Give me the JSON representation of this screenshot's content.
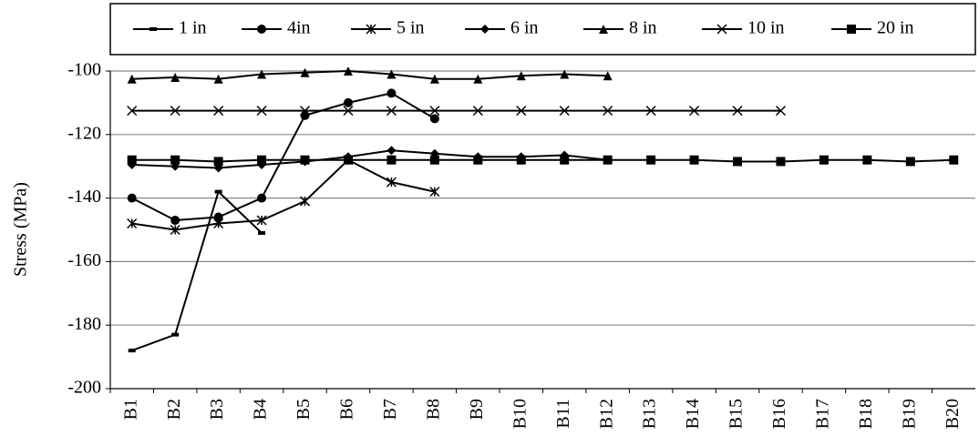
{
  "chart_data": {
    "type": "line",
    "y_label": "Stress (MPa)",
    "categories": [
      "B1",
      "B2",
      "B3",
      "B4",
      "B5",
      "B6",
      "B7",
      "B8",
      "B9",
      "B10",
      "B11",
      "B12",
      "B13",
      "B14",
      "B15",
      "B16",
      "B17",
      "B18",
      "B19",
      "B20"
    ],
    "ylim": [
      -200,
      -100
    ],
    "yticks": [
      -200,
      -180,
      -160,
      -140,
      -120,
      -100
    ],
    "grid": true,
    "legend": "top",
    "series": [
      {
        "name": "1 in",
        "color": "#000000",
        "marker": "dash",
        "values": [
          -188,
          -183,
          -138,
          -151,
          null,
          null,
          null,
          null,
          null,
          null,
          null,
          null,
          null,
          null,
          null,
          null,
          null,
          null,
          null,
          null
        ]
      },
      {
        "name": "4in",
        "color": "#000000",
        "marker": "circle",
        "values": [
          -140,
          -147,
          -146,
          -140,
          -114,
          -110,
          -107,
          -115,
          null,
          null,
          null,
          null,
          null,
          null,
          null,
          null,
          null,
          null,
          null,
          null
        ]
      },
      {
        "name": "5 in",
        "color": "#000000",
        "marker": "star",
        "values": [
          -148,
          -150,
          -148,
          -147,
          -141,
          -128,
          -135,
          -138,
          null,
          null,
          null,
          null,
          null,
          null,
          null,
          null,
          null,
          null,
          null,
          null
        ]
      },
      {
        "name": "6 in",
        "color": "#000000",
        "marker": "diamond",
        "values": [
          -129.5,
          -130,
          -130.5,
          -129.5,
          -128.5,
          -127,
          -125,
          -126,
          -127,
          -127,
          -126.5,
          -128,
          null,
          null,
          null,
          null,
          null,
          null,
          null,
          null
        ]
      },
      {
        "name": "8 in",
        "color": "#000000",
        "marker": "triangle",
        "values": [
          -102.5,
          -102,
          -102.5,
          -101,
          -100.5,
          -100,
          -101,
          -102.5,
          -102.5,
          -101.5,
          -101,
          -101.5,
          null,
          null,
          null,
          null,
          null,
          null,
          null,
          null
        ]
      },
      {
        "name": "10 in",
        "color": "#000000",
        "marker": "x",
        "values": [
          -112.5,
          -112.5,
          -112.5,
          -112.5,
          -112.5,
          -112.5,
          -112.5,
          -112.5,
          -112.5,
          -112.5,
          -112.5,
          -112.5,
          -112.5,
          -112.5,
          -112.5,
          -112.5,
          null,
          null,
          null,
          null
        ]
      },
      {
        "name": "20 in",
        "color": "#000000",
        "marker": "square",
        "values": [
          -128,
          -128,
          -128.5,
          -128,
          -128,
          -128,
          -128,
          -128,
          -128,
          -128,
          -128,
          -128,
          -128,
          -128,
          -128.5,
          -128.5,
          -128,
          -128,
          -128.5,
          -128
        ]
      }
    ]
  }
}
